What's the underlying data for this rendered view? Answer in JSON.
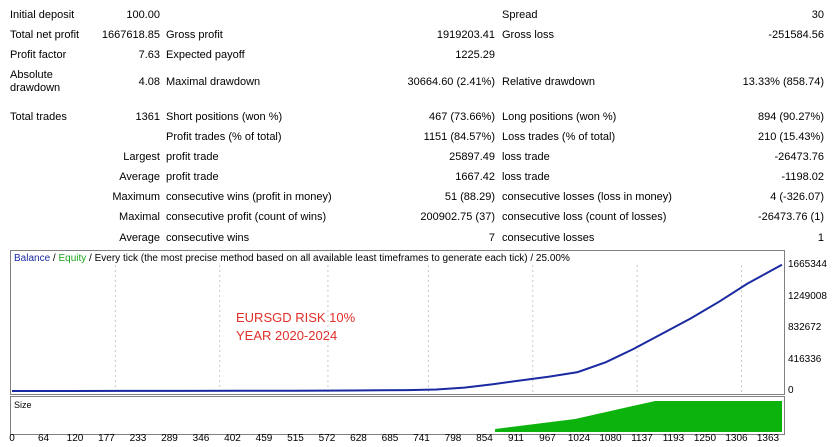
{
  "stats": {
    "initial_deposit": {
      "label": "Initial deposit",
      "value": "100.00"
    },
    "spread": {
      "label": "Spread",
      "value": "30"
    },
    "total_net_profit": {
      "label": "Total net profit",
      "value": "1667618.85"
    },
    "gross_profit": {
      "label": "Gross profit",
      "value": "1919203.41"
    },
    "gross_loss": {
      "label": "Gross loss",
      "value": "-251584.56"
    },
    "profit_factor": {
      "label": "Profit factor",
      "value": "7.63"
    },
    "expected_payoff": {
      "label": "Expected payoff",
      "value": "1225.29"
    },
    "absolute_drawdown": {
      "label_line1": "Absolute",
      "label_line2": "drawdown",
      "value": "4.08"
    },
    "maximal_drawdown": {
      "label": "Maximal drawdown",
      "value": "30664.60 (2.41%)"
    },
    "relative_drawdown": {
      "label": "Relative drawdown",
      "value": "13.33% (858.74)"
    },
    "total_trades": {
      "label": "Total trades",
      "value": "1361"
    },
    "short_positions": {
      "label": "Short positions (won %)",
      "value": "467 (73.66%)"
    },
    "long_positions": {
      "label": "Long positions (won %)",
      "value": "894 (90.27%)"
    },
    "profit_trades": {
      "label": "Profit trades (% of total)",
      "value": "1151 (84.57%)"
    },
    "loss_trades": {
      "label": "Loss trades (% of total)",
      "value": "210 (15.43%)"
    },
    "largest": {
      "label": "Largest",
      "profit_label": "profit trade",
      "profit_value": "25897.49",
      "loss_label": "loss trade",
      "loss_value": "-26473.76"
    },
    "average": {
      "label": "Average",
      "profit_label": "profit trade",
      "profit_value": "1667.42",
      "loss_label": "loss trade",
      "loss_value": "-1198.02"
    },
    "maximum": {
      "label": "Maximum",
      "profit_label": "consecutive wins (profit in money)",
      "profit_value": "51 (88.29)",
      "loss_label": "consecutive losses (loss in money)",
      "loss_value": "4 (-326.07)"
    },
    "maximal": {
      "label": "Maximal",
      "profit_label": "consecutive profit (count of wins)",
      "profit_value": "200902.75 (37)",
      "loss_label": "consecutive loss (count of losses)",
      "loss_value": "-26473.76 (1)"
    },
    "average_consecutive": {
      "label": "Average",
      "profit_label": "consecutive wins",
      "profit_value": "7",
      "loss_label": "consecutive losses",
      "loss_value": "1"
    }
  },
  "chart": {
    "header": {
      "balance": "Balance",
      "sep1": " / ",
      "equity": "Equity",
      "rest": " / Every tick (the most precise method based on all available least timeframes to generate each tick) / 25.00%"
    },
    "note_line1": "EURSGD RISK 10%",
    "note_line2": "YEAR 2020-2024",
    "size_label": "Size",
    "colors": {
      "balance": "#1a2aa0",
      "equity": "#1da51d",
      "size": "#0cb30c",
      "note": "#e0302a"
    }
  },
  "chart_data": {
    "type": "line",
    "series": [
      {
        "name": "Balance",
        "values_ref": "x/y"
      },
      {
        "name": "Equity"
      }
    ],
    "x": [
      0,
      100,
      200,
      300,
      400,
      500,
      600,
      700,
      750,
      800,
      850,
      900,
      950,
      1000,
      1050,
      1100,
      1150,
      1200,
      1250,
      1300,
      1361
    ],
    "y": [
      100,
      300,
      800,
      1500,
      2500,
      4000,
      7000,
      12000,
      20000,
      45000,
      90000,
      140000,
      190000,
      250000,
      380000,
      560000,
      760000,
      960000,
      1180000,
      1420000,
      1667618
    ],
    "y_ticks": [
      "1665344",
      "1249008",
      "832672",
      "416336",
      "0"
    ],
    "x_ticks": [
      "0",
      "64",
      "120",
      "177",
      "233",
      "289",
      "346",
      "402",
      "459",
      "515",
      "572",
      "628",
      "685",
      "741",
      "798",
      "854",
      "911",
      "967",
      "1024",
      "1080",
      "1137",
      "1193",
      "1250",
      "1306",
      "1363"
    ],
    "xlim": [
      0,
      1363
    ],
    "ylim": [
      0,
      1665344
    ],
    "size_series": {
      "name": "Size",
      "start_x": 854,
      "fill_ramp_to_x": 1137
    }
  }
}
